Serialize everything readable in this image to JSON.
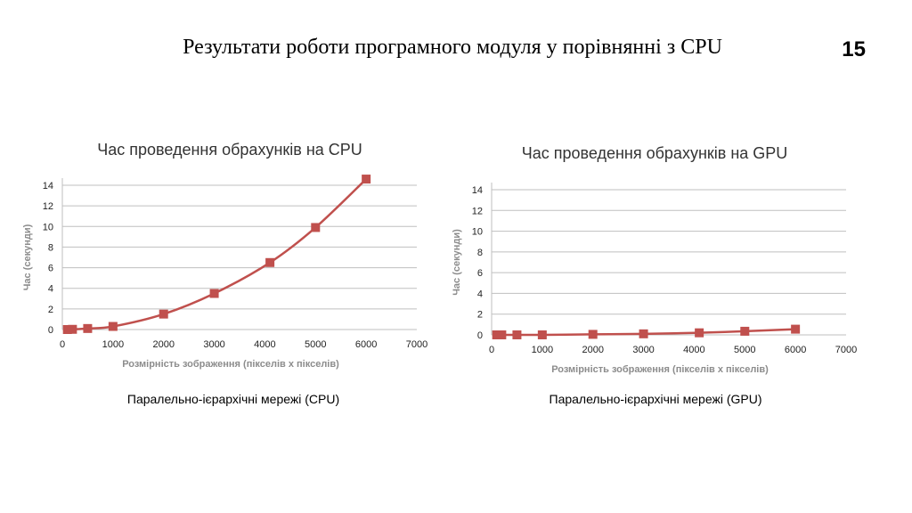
{
  "slide": {
    "title": "Результати роботи програмного модуля у порівнянні з CPU",
    "number": "15"
  },
  "captions": {
    "left": "Паралельно-ієрархічні мережі (CPU)",
    "right": "Паралельно-ієрархічні мережі (GPU)"
  },
  "colors": {
    "series": "#c0504d",
    "grid": "#bfbfbf"
  },
  "chart_data": [
    {
      "type": "line",
      "title": "Час проведення обрахунків на CPU",
      "xlabel": "Розмірність зображення (пікселів х пікселів)",
      "ylabel": "Час (секунди)",
      "xlim": [
        0,
        7000
      ],
      "ylim": [
        0,
        14
      ],
      "xticks": [
        0,
        1000,
        2000,
        3000,
        4000,
        5000,
        6000,
        7000
      ],
      "yticks": [
        0,
        2,
        4,
        6,
        8,
        10,
        12,
        14
      ],
      "grid": true,
      "series": [
        {
          "x": [
            100,
            200,
            500,
            1000,
            2000,
            3000,
            4100,
            5000,
            6000
          ],
          "y": [
            0.0,
            0.02,
            0.1,
            0.3,
            1.5,
            3.5,
            6.5,
            9.9,
            14.6
          ]
        }
      ]
    },
    {
      "type": "line",
      "title": "Час проведення обрахунків на GPU",
      "xlabel": "Розмірність зображення (пікселів х пікселів)",
      "ylabel": "Час (секунди)",
      "xlim": [
        0,
        7000
      ],
      "ylim": [
        0,
        14
      ],
      "xticks": [
        0,
        1000,
        2000,
        3000,
        4000,
        5000,
        6000,
        7000
      ],
      "yticks": [
        0,
        2,
        4,
        6,
        8,
        10,
        12,
        14
      ],
      "grid": true,
      "series": [
        {
          "x": [
            100,
            200,
            500,
            1000,
            2000,
            3000,
            4100,
            5000,
            6000
          ],
          "y": [
            0.0,
            0.0,
            0.0,
            0.0,
            0.05,
            0.1,
            0.2,
            0.35,
            0.55
          ]
        }
      ]
    }
  ]
}
